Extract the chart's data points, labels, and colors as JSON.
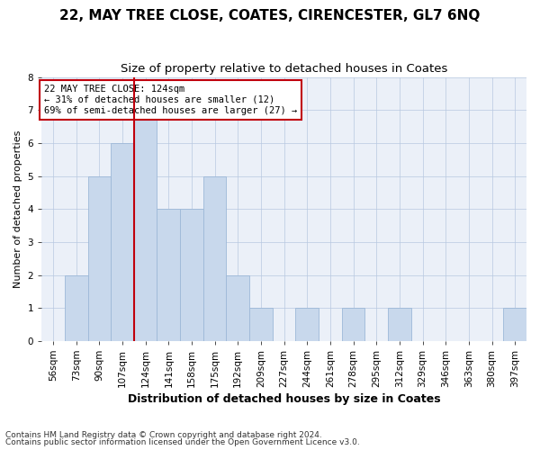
{
  "title": "22, MAY TREE CLOSE, COATES, CIRENCESTER, GL7 6NQ",
  "subtitle": "Size of property relative to detached houses in Coates",
  "xlabel": "Distribution of detached houses by size in Coates",
  "ylabel": "Number of detached properties",
  "footnote1": "Contains HM Land Registry data © Crown copyright and database right 2024.",
  "footnote2": "Contains public sector information licensed under the Open Government Licence v3.0.",
  "annotation_line1": "22 MAY TREE CLOSE: 124sqm",
  "annotation_line2": "← 31% of detached houses are smaller (12)",
  "annotation_line3": "69% of semi-detached houses are larger (27) →",
  "bar_labels": [
    "56sqm",
    "73sqm",
    "90sqm",
    "107sqm",
    "124sqm",
    "141sqm",
    "158sqm",
    "175sqm",
    "192sqm",
    "209sqm",
    "227sqm",
    "244sqm",
    "261sqm",
    "278sqm",
    "295sqm",
    "312sqm",
    "329sqm",
    "346sqm",
    "363sqm",
    "380sqm",
    "397sqm"
  ],
  "bar_values": [
    0,
    2,
    5,
    6,
    7,
    4,
    4,
    5,
    2,
    1,
    0,
    1,
    0,
    1,
    0,
    1,
    0,
    0,
    0,
    0,
    1
  ],
  "bar_color": "#C8D8EC",
  "bar_edge_color": "#9DB8D8",
  "highlight_index": 4,
  "highlight_color": "#C0000C",
  "ylim": [
    0,
    8
  ],
  "yticks": [
    0,
    1,
    2,
    3,
    4,
    5,
    6,
    7,
    8
  ],
  "grid_color": "#B8C8E0",
  "bg_color": "#EBF0F8",
  "title_fontsize": 11,
  "subtitle_fontsize": 9.5,
  "xlabel_fontsize": 9,
  "ylabel_fontsize": 8,
  "tick_fontsize": 7.5,
  "annotation_fontsize": 7.5,
  "footnote_fontsize": 6.5
}
